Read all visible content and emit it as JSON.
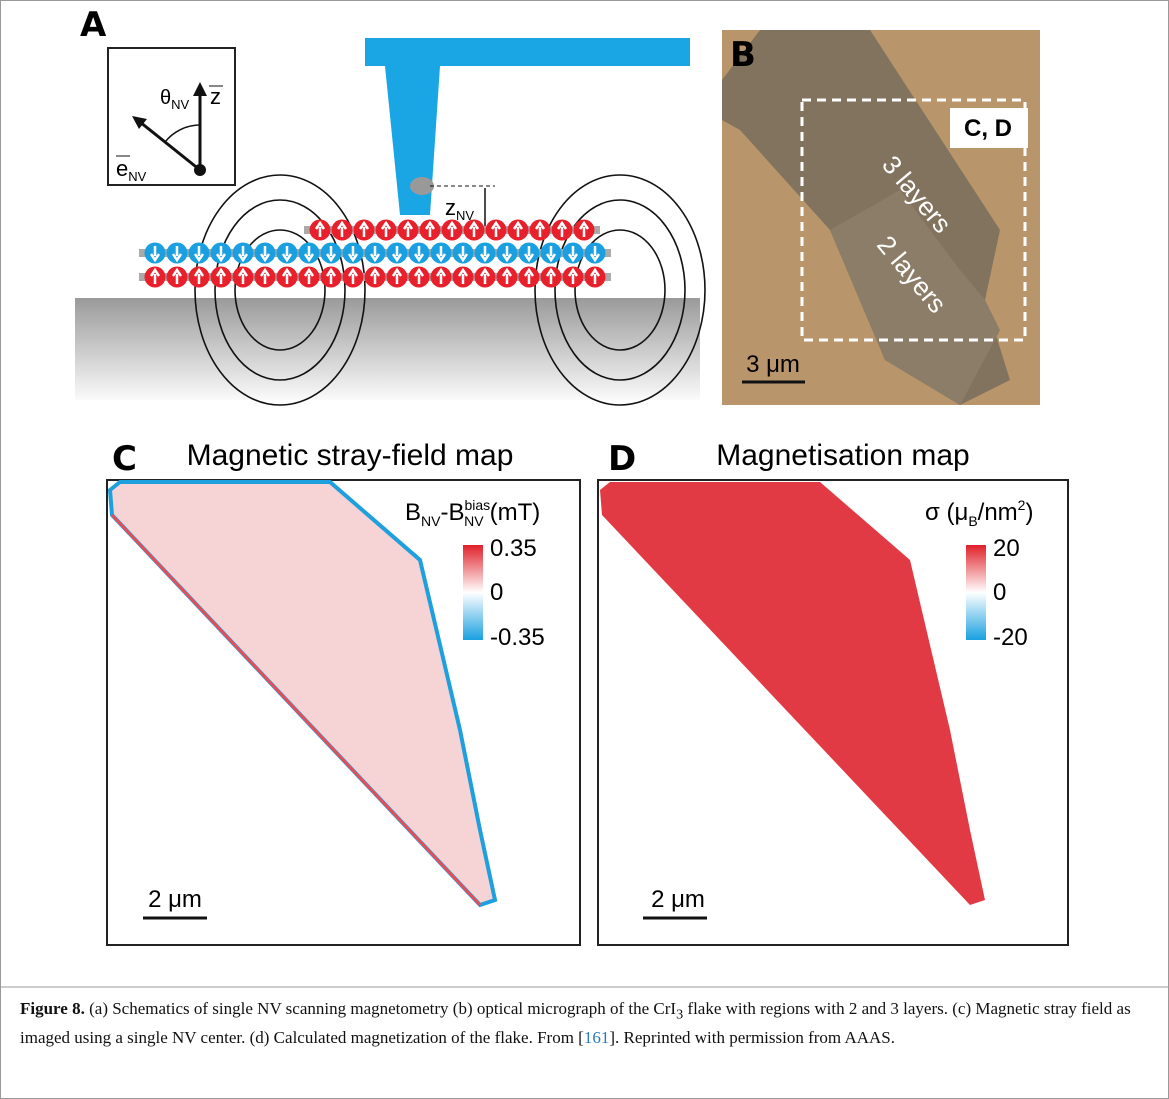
{
  "panel_a": {
    "label": "A",
    "angle": {
      "symbol": "θ",
      "sub": "NV"
    },
    "z_axis": "z",
    "e_vector": {
      "symbol": "e",
      "sub": "NV"
    },
    "distance": {
      "symbol": "z",
      "sub": "NV"
    }
  },
  "panel_b": {
    "label": "B",
    "region_label": "C, D",
    "layer_3": "3 layers",
    "layer_2": "2 layers",
    "scale_bar": "3 μm"
  },
  "panel_c": {
    "label": "C",
    "title": "Magnetic stray-field map",
    "colorbar": {
      "q1": "B",
      "q1_sub": "NV",
      "q2": "-B",
      "q2_sup": "bias",
      "q2_sub": "NV",
      "unit": "(mT)",
      "max": 0.35,
      "mid": 0,
      "min": -0.35
    },
    "scale_bar": "2 μm"
  },
  "panel_d": {
    "label": "D",
    "title": "Magnetisation map",
    "colorbar": {
      "q1": "σ (μ",
      "q1_sub": "B",
      "q2": "/nm",
      "q2_sup": "2",
      "unit": ")",
      "max": 20,
      "mid": 0,
      "min": -20
    },
    "scale_bar": "2 μm"
  },
  "caption": {
    "label": "Figure 8.",
    "text_1": " (a) Schematics of single NV scanning magnetometry (b) optical micrograph of the CrI",
    "sub": "3",
    "text_2": " flake with regions with 2 and 3 layers. (c) Magnetic stray field as imaged using a single NV center. (d) Calculated magnetization of the flake. From [",
    "ref": "161",
    "text_3": "]. Reprinted with permission from AAAS."
  }
}
